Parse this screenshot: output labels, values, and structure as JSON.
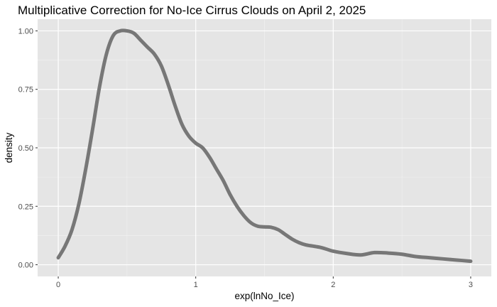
{
  "chart_data": {
    "type": "line",
    "title": "Multiplicative Correction for No-Ice Cirrus Clouds on April 2, 2025",
    "xlabel": "exp(lnNo_Ice)",
    "ylabel": "density",
    "xlim": [
      -0.15,
      3.15
    ],
    "ylim": [
      -0.05,
      1.05
    ],
    "x_ticks": [
      0,
      1,
      2,
      3
    ],
    "x_tick_labels": [
      "0",
      "1",
      "2",
      "3"
    ],
    "y_ticks": [
      0,
      0.25,
      0.5,
      0.75,
      1.0
    ],
    "y_tick_labels": [
      "0.00",
      "0.25",
      "0.50",
      "0.75",
      "1.00"
    ],
    "grid": true,
    "legend": "none",
    "series": [
      {
        "color": "#777777",
        "x": [
          0.0,
          0.05,
          0.1,
          0.15,
          0.2,
          0.25,
          0.3,
          0.35,
          0.4,
          0.45,
          0.5,
          0.55,
          0.6,
          0.65,
          0.7,
          0.75,
          0.8,
          0.85,
          0.9,
          0.95,
          1.0,
          1.05,
          1.1,
          1.15,
          1.2,
          1.25,
          1.3,
          1.35,
          1.4,
          1.45,
          1.5,
          1.55,
          1.6,
          1.65,
          1.7,
          1.75,
          1.8,
          1.85,
          1.9,
          1.95,
          2.0,
          2.1,
          2.2,
          2.3,
          2.4,
          2.5,
          2.6,
          2.7,
          2.8,
          2.9,
          3.0
        ],
        "y": [
          0.03,
          0.08,
          0.15,
          0.26,
          0.41,
          0.58,
          0.76,
          0.9,
          0.98,
          1.0,
          1.0,
          0.99,
          0.96,
          0.93,
          0.9,
          0.85,
          0.77,
          0.68,
          0.6,
          0.55,
          0.52,
          0.5,
          0.46,
          0.41,
          0.36,
          0.3,
          0.25,
          0.21,
          0.18,
          0.165,
          0.162,
          0.16,
          0.15,
          0.13,
          0.11,
          0.095,
          0.085,
          0.08,
          0.075,
          0.067,
          0.058,
          0.048,
          0.042,
          0.052,
          0.05,
          0.045,
          0.035,
          0.03,
          0.025,
          0.02,
          0.015
        ]
      }
    ]
  }
}
